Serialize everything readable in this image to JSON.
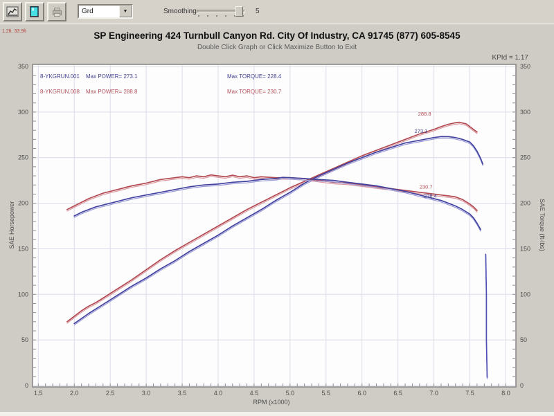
{
  "toolbar": {
    "buttons": [
      {
        "name": "graph-button",
        "icon": "line-graph-icon"
      },
      {
        "name": "monitor-button",
        "icon": "cyan-monitor-icon"
      },
      {
        "name": "print-button",
        "icon": "printer-icon-disabled"
      }
    ],
    "dropdown_value": "Grd",
    "smoothing_label": "Smoothing",
    "smoothing_value": "5"
  },
  "header": {
    "env_info": "1.2ft. 33.9ft",
    "title": "SP Engineering 424 Turnbull Canyon Rd. City Of Industry, CA 91745 (877) 605-8545",
    "subtitle": "Double Click Graph or Click Maximize Button to Exit",
    "correction": "KPId = 1.17"
  },
  "legend": {
    "runs": [
      {
        "file": "8-YKGRUN.001",
        "power": "Max POWER= 273.1",
        "torque": "Max TORQUE= 228.4",
        "color": "#3f3f8f"
      },
      {
        "file": "8-YKGRUN.008",
        "power": "Max POWER= 288.8",
        "torque": "Max TORQUE= 230.7",
        "color": "#b0525c"
      }
    ]
  },
  "chart_data": {
    "type": "line",
    "xlabel": "RPM (x1000)",
    "ylabel_left": "SAE Horsepower",
    "ylabel_right": "SAE Torque (ft-lbs)",
    "xlim": [
      1.42,
      8.14
    ],
    "ylim": [
      0,
      350
    ],
    "xticks": [
      1.5,
      2.0,
      2.5,
      3.0,
      3.5,
      4.0,
      4.5,
      5.0,
      5.5,
      6.0,
      6.5,
      7.0,
      7.5,
      8.0
    ],
    "yticks": [
      0,
      50,
      100,
      150,
      200,
      250,
      300,
      350
    ],
    "grid": true,
    "grid_color": "#dcdce9",
    "plot_bg": "#fdfdfd",
    "series": [
      {
        "name": "run-008-horsepower",
        "color": "#b24a52",
        "echo": "#dc9aa2",
        "points": [
          [
            1.9,
            70
          ],
          [
            2.0,
            76
          ],
          [
            2.1,
            82
          ],
          [
            2.2,
            87
          ],
          [
            2.3,
            91
          ],
          [
            2.4,
            96
          ],
          [
            2.5,
            101
          ],
          [
            2.6,
            106
          ],
          [
            2.8,
            116
          ],
          [
            3.0,
            127
          ],
          [
            3.2,
            138
          ],
          [
            3.4,
            148
          ],
          [
            3.6,
            157
          ],
          [
            3.8,
            166
          ],
          [
            4.0,
            175
          ],
          [
            4.2,
            184
          ],
          [
            4.4,
            193
          ],
          [
            4.6,
            201
          ],
          [
            4.8,
            209
          ],
          [
            5.0,
            217
          ],
          [
            5.2,
            224
          ],
          [
            5.4,
            231
          ],
          [
            5.6,
            238
          ],
          [
            5.8,
            245
          ],
          [
            6.0,
            252
          ],
          [
            6.2,
            258
          ],
          [
            6.4,
            264
          ],
          [
            6.6,
            270
          ],
          [
            6.8,
            276
          ],
          [
            7.0,
            281
          ],
          [
            7.1,
            284
          ],
          [
            7.2,
            286.5
          ],
          [
            7.3,
            288.3
          ],
          [
            7.35,
            288.8
          ],
          [
            7.45,
            287
          ],
          [
            7.5,
            284
          ],
          [
            7.55,
            281
          ],
          [
            7.6,
            278
          ]
        ]
      },
      {
        "name": "run-001-horsepower",
        "color": "#4343a0",
        "echo": "#9a9ad6",
        "points": [
          [
            2.0,
            68
          ],
          [
            2.2,
            79
          ],
          [
            2.4,
            89
          ],
          [
            2.6,
            99
          ],
          [
            2.8,
            109
          ],
          [
            3.0,
            118
          ],
          [
            3.2,
            128
          ],
          [
            3.4,
            137
          ],
          [
            3.6,
            147
          ],
          [
            3.8,
            156
          ],
          [
            4.0,
            165
          ],
          [
            4.2,
            175
          ],
          [
            4.4,
            184
          ],
          [
            4.6,
            193
          ],
          [
            4.8,
            203
          ],
          [
            5.0,
            212
          ],
          [
            5.2,
            222
          ],
          [
            5.4,
            230
          ],
          [
            5.6,
            237
          ],
          [
            5.8,
            244
          ],
          [
            6.0,
            250
          ],
          [
            6.2,
            256
          ],
          [
            6.4,
            261
          ],
          [
            6.6,
            266
          ],
          [
            6.8,
            269
          ],
          [
            7.0,
            272
          ],
          [
            7.1,
            273.1
          ],
          [
            7.2,
            273
          ],
          [
            7.3,
            272
          ],
          [
            7.4,
            270
          ],
          [
            7.5,
            267
          ],
          [
            7.55,
            263
          ],
          [
            7.6,
            257
          ],
          [
            7.65,
            249
          ],
          [
            7.68,
            243
          ]
        ]
      },
      {
        "name": "run-008-torque",
        "color": "#b24a52",
        "echo": "#dc9aa2",
        "points": [
          [
            1.9,
            193
          ],
          [
            2.0,
            197
          ],
          [
            2.1,
            201
          ],
          [
            2.2,
            205
          ],
          [
            2.3,
            208
          ],
          [
            2.4,
            211
          ],
          [
            2.5,
            213
          ],
          [
            2.6,
            215
          ],
          [
            2.8,
            219
          ],
          [
            3.0,
            222
          ],
          [
            3.2,
            226
          ],
          [
            3.4,
            228
          ],
          [
            3.5,
            229
          ],
          [
            3.6,
            228
          ],
          [
            3.7,
            230
          ],
          [
            3.8,
            229
          ],
          [
            3.9,
            231
          ],
          [
            4.0,
            230
          ],
          [
            4.1,
            229
          ],
          [
            4.2,
            230.7
          ],
          [
            4.3,
            229
          ],
          [
            4.4,
            230
          ],
          [
            4.5,
            228
          ],
          [
            4.6,
            229
          ],
          [
            4.8,
            228
          ],
          [
            5.0,
            228
          ],
          [
            5.2,
            227
          ],
          [
            5.4,
            225
          ],
          [
            5.6,
            223
          ],
          [
            5.8,
            222
          ],
          [
            6.0,
            220
          ],
          [
            6.2,
            218
          ],
          [
            6.4,
            216
          ],
          [
            6.6,
            214
          ],
          [
            6.8,
            212
          ],
          [
            7.0,
            210
          ],
          [
            7.1,
            209
          ],
          [
            7.2,
            208
          ],
          [
            7.3,
            207
          ],
          [
            7.4,
            204
          ],
          [
            7.5,
            199
          ],
          [
            7.55,
            196
          ],
          [
            7.6,
            192
          ]
        ]
      },
      {
        "name": "run-001-torque",
        "color": "#4343a0",
        "echo": "#9a9ad6",
        "points": [
          [
            2.0,
            186
          ],
          [
            2.1,
            190
          ],
          [
            2.2,
            193
          ],
          [
            2.3,
            196
          ],
          [
            2.4,
            198
          ],
          [
            2.5,
            200
          ],
          [
            2.6,
            202
          ],
          [
            2.8,
            206
          ],
          [
            3.0,
            209
          ],
          [
            3.2,
            212
          ],
          [
            3.4,
            215
          ],
          [
            3.6,
            218
          ],
          [
            3.8,
            220
          ],
          [
            4.0,
            221
          ],
          [
            4.2,
            223
          ],
          [
            4.4,
            224
          ],
          [
            4.6,
            226
          ],
          [
            4.8,
            227
          ],
          [
            4.9,
            228.4
          ],
          [
            5.0,
            228
          ],
          [
            5.2,
            227
          ],
          [
            5.4,
            226
          ],
          [
            5.6,
            225
          ],
          [
            5.8,
            223
          ],
          [
            6.0,
            221
          ],
          [
            6.2,
            219
          ],
          [
            6.4,
            216
          ],
          [
            6.6,
            213
          ],
          [
            6.8,
            209
          ],
          [
            7.0,
            205
          ],
          [
            7.1,
            203
          ],
          [
            7.2,
            200
          ],
          [
            7.3,
            197
          ],
          [
            7.4,
            193
          ],
          [
            7.5,
            188
          ],
          [
            7.55,
            184
          ],
          [
            7.6,
            178
          ],
          [
            7.65,
            171
          ]
        ]
      },
      {
        "name": "run-001-rundown-tail",
        "color": "#5050b4",
        "echo": "#9a9ad6",
        "points": [
          [
            7.72,
            144
          ],
          [
            7.73,
            100
          ],
          [
            7.73,
            50
          ],
          [
            7.74,
            9
          ]
        ]
      }
    ],
    "annotations": [
      {
        "text": "288.8",
        "x": 6.78,
        "y": 296,
        "color": "#b24a52"
      },
      {
        "text": "273.1",
        "x": 6.73,
        "y": 277,
        "color": "#3f3f8f"
      },
      {
        "text": "230.7",
        "x": 6.8,
        "y": 216,
        "color": "#b24a52"
      },
      {
        "text": "228.4",
        "x": 6.86,
        "y": 206,
        "color": "#3f3f8f"
      }
    ],
    "legend_position": "top-left-inside"
  }
}
